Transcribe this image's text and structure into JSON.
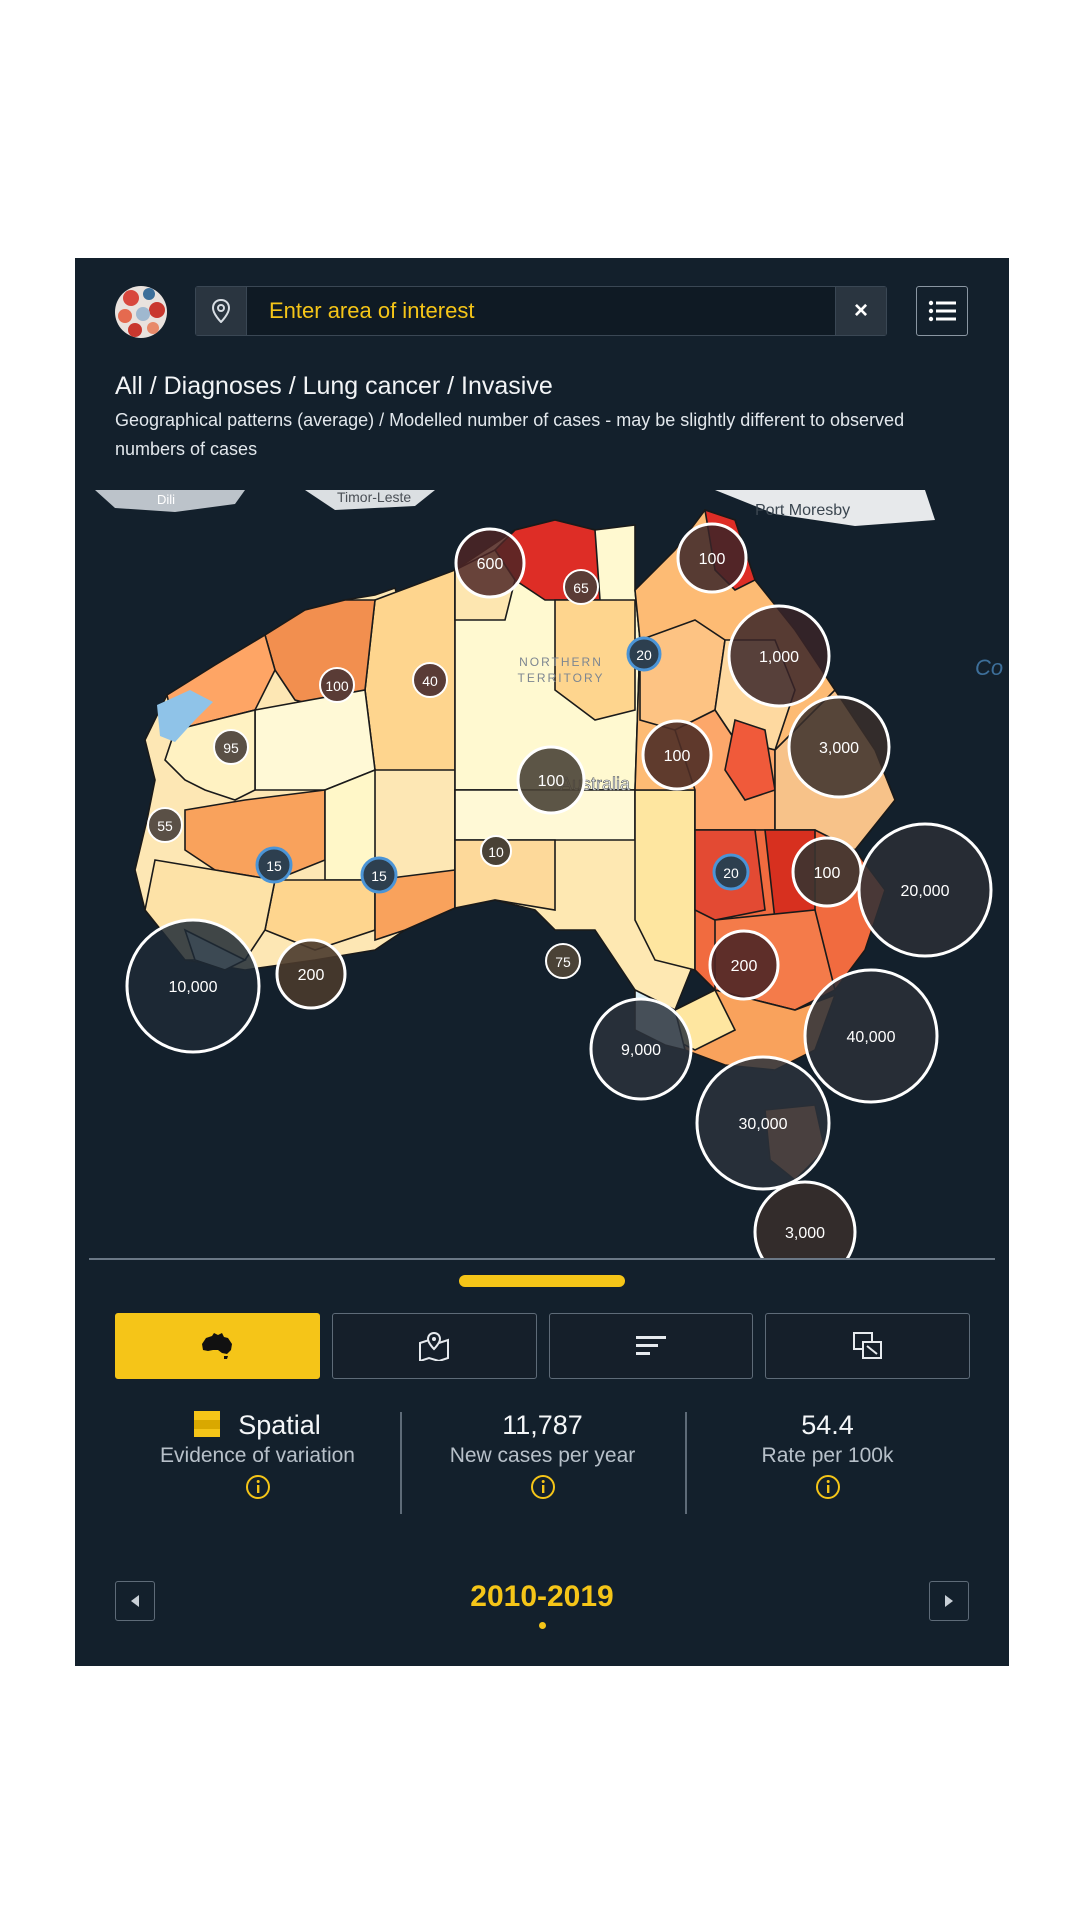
{
  "header": {
    "search_placeholder": "Enter area of interest",
    "clear_label": "×"
  },
  "breadcrumb": "All / Diagnoses / Lung cancer / Invasive",
  "subtitle": "Geographical patterns (average) / Modelled number of cases - may be slightly different to observed numbers of cases",
  "map": {
    "labels": {
      "dili": "Dili",
      "timor": "Timor-Leste",
      "moresby": "Port Moresby",
      "nt_line1": "NORTHERN",
      "nt_line2": "TERRITORY",
      "australia": "Australia",
      "edge": "Co S"
    },
    "clusters": [
      "600",
      "65",
      "100",
      "20",
      "1,000",
      "100",
      "40",
      "95",
      "100",
      "100",
      "3,000",
      "55",
      "10",
      "15",
      "15",
      "20",
      "100",
      "20,000",
      "75",
      "10,000",
      "200",
      "200",
      "40,000",
      "9,000",
      "30,000",
      "3,000"
    ]
  },
  "tabs": [
    "map-view",
    "location-view",
    "bar-chart-view",
    "compare-view"
  ],
  "stats": {
    "spatial": {
      "value": "Spatial",
      "label": "Evidence of variation"
    },
    "cases": {
      "value": "11,787",
      "label": "New cases per year"
    },
    "rate": {
      "value": "54.4",
      "label": "Rate per 100k"
    }
  },
  "timeline": {
    "period": "2010-2019"
  },
  "colors": {
    "accent": "#f5c518",
    "background": "#13202c"
  }
}
